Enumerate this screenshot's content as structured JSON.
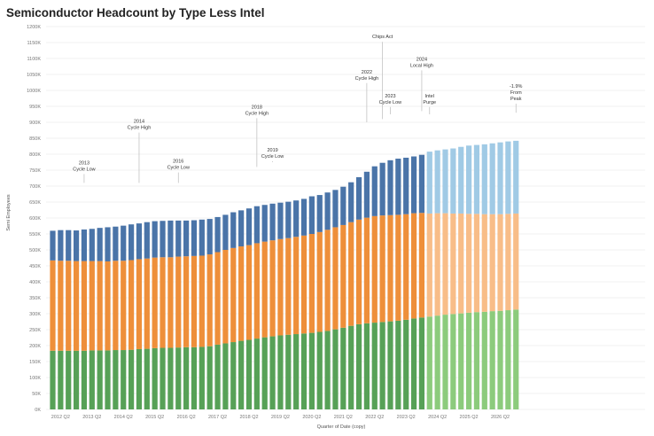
{
  "page": {
    "title": "Semiconductor Headcount by Type Less Intel"
  },
  "chart_data": {
    "type": "bar",
    "stacked": true,
    "title": "Semiconductor Headcount by Type Less Intel",
    "xlabel": "Quarter of Date (copy)",
    "ylabel": "Semi Employees",
    "ylim": [
      0,
      1200000
    ],
    "y_ticks": [
      "0K",
      "50K",
      "100K",
      "150K",
      "200K",
      "250K",
      "300K",
      "350K",
      "400K",
      "450K",
      "500K",
      "550K",
      "600K",
      "650K",
      "700K",
      "750K",
      "800K",
      "850K",
      "900K",
      "950K",
      "1000K",
      "1050K",
      "1100K",
      "1150K",
      "1200K"
    ],
    "x_tick_labels": [
      "2012 Q2",
      "2013 Q2",
      "2014 Q2",
      "2015 Q2",
      "2016 Q2",
      "2017 Q2",
      "2018 Q2",
      "2019 Q2",
      "2020 Q2",
      "2021 Q2",
      "2022 Q2",
      "2023 Q2",
      "2024 Q2",
      "2025 Q2",
      "2026 Q2"
    ],
    "grid": true,
    "legend": "none",
    "n_bars": 60,
    "forecast_start_index": 48,
    "colors": {
      "actual": [
        "#57a157",
        "#ee8f3a",
        "#4a74a8"
      ],
      "forecast": [
        "#8ccb7c",
        "#f8bd88",
        "#a0cae5"
      ]
    },
    "totals": [
      560000,
      562000,
      562000,
      561000,
      564000,
      566000,
      569000,
      571000,
      573000,
      576000,
      580000,
      583000,
      587000,
      590000,
      591000,
      592000,
      592000,
      592000,
      593000,
      595000,
      597000,
      603000,
      610000,
      618000,
      624000,
      630000,
      637000,
      641000,
      645000,
      648000,
      651000,
      655000,
      660000,
      668000,
      672000,
      680000,
      688000,
      698000,
      712000,
      728000,
      745000,
      762000,
      773000,
      781000,
      786000,
      789000,
      793000,
      798000,
      808000,
      812000,
      815000,
      818000,
      823000,
      827000,
      829000,
      831000,
      834000,
      837000,
      840000,
      842000
    ],
    "series": [
      {
        "values": [
          184000,
          184000,
          184000,
          184000,
          184000,
          185000,
          185000,
          185000,
          186000,
          186000,
          187000,
          189000,
          190000,
          192000,
          193000,
          193000,
          194000,
          195000,
          195000,
          196000,
          198000,
          203000,
          207000,
          211000,
          215000,
          218000,
          222000,
          226000,
          229000,
          232000,
          234000,
          236000,
          238000,
          240000,
          243000,
          246000,
          251000,
          256000,
          262000,
          267000,
          270000,
          272000,
          274000,
          276000,
          278000,
          281000,
          285000,
          288000,
          291000,
          294000,
          297000,
          299000,
          301000,
          303000,
          305000,
          306000,
          308000,
          309000,
          311000,
          313000
        ]
      },
      {
        "values": [
          283000,
          282000,
          282000,
          281000,
          281000,
          280000,
          280000,
          279000,
          280000,
          280000,
          281000,
          282000,
          283000,
          284000,
          284000,
          284000,
          285000,
          285000,
          286000,
          286000,
          288000,
          290000,
          293000,
          295000,
          296000,
          297000,
          299000,
          300000,
          301000,
          302000,
          303000,
          305000,
          307000,
          310000,
          313000,
          317000,
          320000,
          322000,
          325000,
          328000,
          331000,
          334000,
          334000,
          333000,
          332000,
          331000,
          330000,
          328000,
          323000,
          321000,
          318000,
          315000,
          313000,
          310000,
          308000,
          306000,
          304000,
          303000,
          302000,
          301000
        ]
      },
      {
        "values": [
          93000,
          96000,
          96000,
          96000,
          99000,
          101000,
          104000,
          107000,
          107000,
          110000,
          112000,
          112000,
          114000,
          114000,
          114000,
          115000,
          113000,
          112000,
          112000,
          113000,
          111000,
          110000,
          110000,
          112000,
          113000,
          115000,
          116000,
          115000,
          115000,
          114000,
          114000,
          114000,
          115000,
          118000,
          116000,
          117000,
          117000,
          120000,
          125000,
          133000,
          144000,
          156000,
          165000,
          172000,
          176000,
          177000,
          178000,
          182000,
          194000,
          197000,
          200000,
          204000,
          209000,
          214000,
          216000,
          219000,
          222000,
          225000,
          227000,
          228000
        ]
      }
    ],
    "annotations": [
      {
        "lines": [
          "2013",
          "Cycle Low"
        ],
        "index": 4,
        "y": 785000,
        "y_end": 710000
      },
      {
        "lines": [
          "2014",
          "Cycle High"
        ],
        "index": 11,
        "y": 915000,
        "y_end": 710000
      },
      {
        "lines": [
          "2016",
          "Cycle Low"
        ],
        "index": 16,
        "y": 790000,
        "y_end": 710000
      },
      {
        "lines": [
          "2018",
          "Cycle High"
        ],
        "index": 26,
        "y": 960000,
        "y_end": 760000
      },
      {
        "lines": [
          "2019",
          "Cycle Low"
        ],
        "index": 28,
        "y": 825000,
        "y_end": 775000
      },
      {
        "lines": [
          "Chips Act"
        ],
        "index": 42,
        "y": 1180000,
        "y_end": 910000
      },
      {
        "lines": [
          "2022",
          "Cycle High"
        ],
        "index": 40,
        "y": 1070000,
        "y_end": 900000
      },
      {
        "lines": [
          "2023",
          "Cycle Low"
        ],
        "index": 43,
        "y": 995000,
        "y_end": 925000
      },
      {
        "lines": [
          "2024",
          "Local High"
        ],
        "index": 47,
        "y": 1110000,
        "y_end": 935000
      },
      {
        "lines": [
          "Intel",
          "Purge"
        ],
        "index": 48,
        "y": 995000,
        "y_end": 925000
      },
      {
        "lines": [
          "-1.9%",
          "From",
          "Peak"
        ],
        "index": 59,
        "y": 1025000,
        "y_end": 930000
      }
    ]
  }
}
